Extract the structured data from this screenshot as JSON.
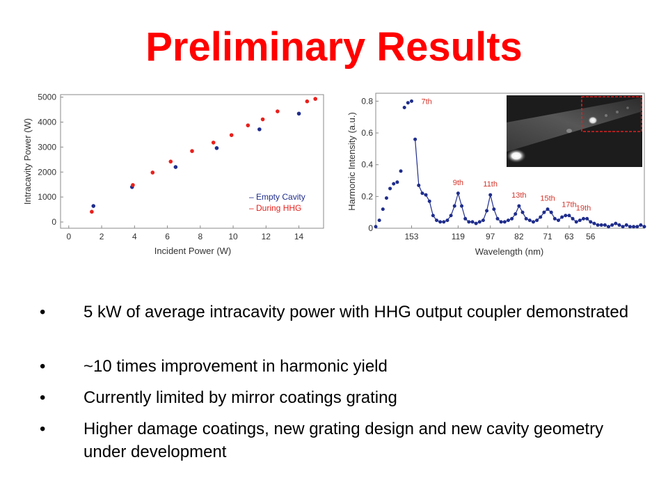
{
  "slide": {
    "title": "Preliminary Results"
  },
  "chart_data": [
    {
      "type": "scatter",
      "title": "",
      "xlabel": "Incident Power (W)",
      "ylabel": "Intracavity Power (W)",
      "xlim": [
        -0.5,
        15.5
      ],
      "ylim": [
        -250,
        5100
      ],
      "x_ticks": [
        "0",
        "2",
        "4",
        "6",
        "8",
        "10",
        "12",
        "14"
      ],
      "y_ticks": [
        "0",
        "1000",
        "2000",
        "3000",
        "4000",
        "5000"
      ],
      "grid": false,
      "legend_position": "bottom-right",
      "series": [
        {
          "name": "Empty Cavity",
          "color": "#1f2d8c",
          "marker": "dot",
          "x": [
            1.5,
            3.85,
            6.5,
            9.0,
            11.6,
            14.0
          ],
          "y": [
            640,
            1400,
            2200,
            2960,
            3710,
            4340
          ]
        },
        {
          "name": "During HHG",
          "color": "#e8201c",
          "marker": "dot",
          "x": [
            1.4,
            3.9,
            5.1,
            6.2,
            7.5,
            8.8,
            9.9,
            10.9,
            11.8,
            12.7,
            14.5,
            15.0
          ],
          "y": [
            410,
            1480,
            1980,
            2420,
            2840,
            3180,
            3480,
            3870,
            4110,
            4430,
            4830,
            4930
          ]
        }
      ]
    },
    {
      "type": "line",
      "title": "",
      "xlabel": "Wavelength (nm)",
      "ylabel": "Harmonic Intensity (a.u.)",
      "ylim": [
        0,
        0.85
      ],
      "x_tick_labels": [
        "153",
        "119",
        "97",
        "82",
        "71",
        "63",
        "56"
      ],
      "y_ticks": [
        "0",
        "0.2",
        "0.4",
        "0.6",
        "0.8"
      ],
      "harmonic_labels": [
        "7th",
        "9th",
        "11th",
        "13th",
        "15th",
        "17th",
        "19th"
      ],
      "label_color": "#d4342a",
      "series": [
        {
          "name": "",
          "color": "#1f2d8c",
          "marker": "dot",
          "x_index": [
            0,
            1,
            2,
            3,
            4,
            5,
            6,
            7,
            8,
            9,
            10,
            11,
            12,
            13,
            14,
            15,
            16,
            17,
            18,
            19,
            20,
            21,
            22,
            23,
            24,
            25,
            26,
            27,
            28,
            29,
            30,
            31,
            32,
            33,
            34,
            35,
            36,
            37,
            38,
            39,
            40,
            41,
            42,
            43,
            44,
            45,
            46,
            47,
            48,
            49,
            50,
            51,
            52,
            53,
            54,
            55,
            56,
            57,
            58,
            59,
            60,
            61,
            62,
            63,
            64,
            65,
            66,
            67,
            68,
            69,
            70,
            71,
            72,
            73,
            74,
            75
          ],
          "values": [
            0.01,
            0.05,
            0.12,
            0.19,
            0.25,
            0.28,
            0.29,
            0.36,
            0.76,
            0.79,
            0.8,
            0.56,
            0.27,
            0.22,
            0.21,
            0.17,
            0.08,
            0.05,
            0.04,
            0.04,
            0.05,
            0.08,
            0.14,
            0.22,
            0.14,
            0.06,
            0.04,
            0.04,
            0.03,
            0.04,
            0.05,
            0.11,
            0.21,
            0.12,
            0.06,
            0.04,
            0.04,
            0.05,
            0.06,
            0.09,
            0.14,
            0.1,
            0.06,
            0.05,
            0.04,
            0.05,
            0.07,
            0.1,
            0.12,
            0.1,
            0.06,
            0.05,
            0.07,
            0.08,
            0.08,
            0.06,
            0.04,
            0.05,
            0.06,
            0.06,
            0.04,
            0.03,
            0.02,
            0.02,
            0.02,
            0.01,
            0.02,
            0.03,
            0.02,
            0.01,
            0.02,
            0.01,
            0.01,
            0.01,
            0.02,
            0.01
          ]
        }
      ],
      "fit_line": {
        "color": "#1f2d8c"
      }
    }
  ],
  "legend": [
    "– Empty Cavity",
    "– During HHG"
  ],
  "bullets": [
    "5 kW of average intracavity power with HHG output coupler demonstrated",
    "~10 times improvement in harmonic yield",
    "Currently limited by mirror coatings grating",
    "Higher damage coatings, new grating design and new cavity geometry under development"
  ],
  "bullet_symbol": "•"
}
